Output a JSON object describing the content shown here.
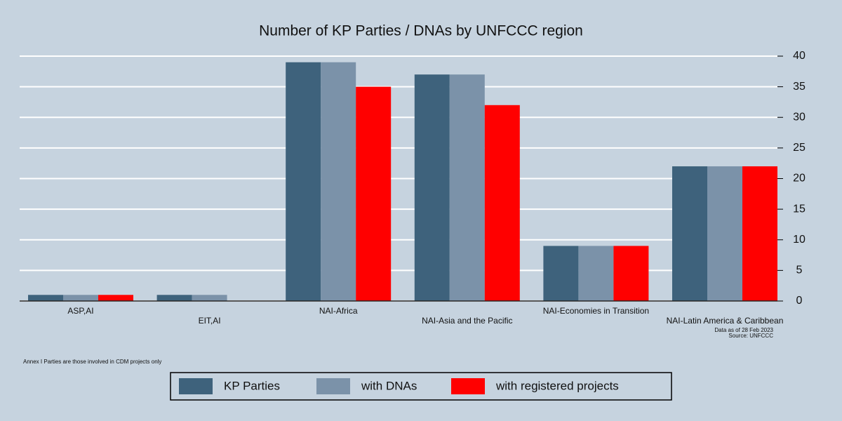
{
  "chart_data": {
    "type": "bar",
    "title": "Number of KP Parties / DNAs by UNFCCC region",
    "categories": [
      "ASP,AI",
      "EIT,AI",
      "NAI-Africa",
      "NAI-Asia and the Pacific",
      "NAI-Economies in Transition",
      "NAI-Latin America & Caribbean"
    ],
    "series": [
      {
        "name": "KP Parties",
        "color": "#3e627c",
        "values": [
          1,
          1,
          39,
          37,
          9,
          22
        ]
      },
      {
        "name": "with DNAs",
        "color": "#7b92a9",
        "values": [
          1,
          1,
          39,
          37,
          9,
          22
        ]
      },
      {
        "name": "with registered projects",
        "color": "#ff0000",
        "values": [
          1,
          0,
          35,
          32,
          9,
          22
        ]
      }
    ],
    "ylim": [
      0,
      40
    ],
    "yticks": [
      0,
      5,
      10,
      15,
      20,
      25,
      30,
      35,
      40
    ],
    "grid": true,
    "notes": [
      "Data as of 28 Feb 2023",
      "Source: UNFCCC"
    ],
    "footnote": "Annex I Parties are those involved in CDM projects only"
  }
}
